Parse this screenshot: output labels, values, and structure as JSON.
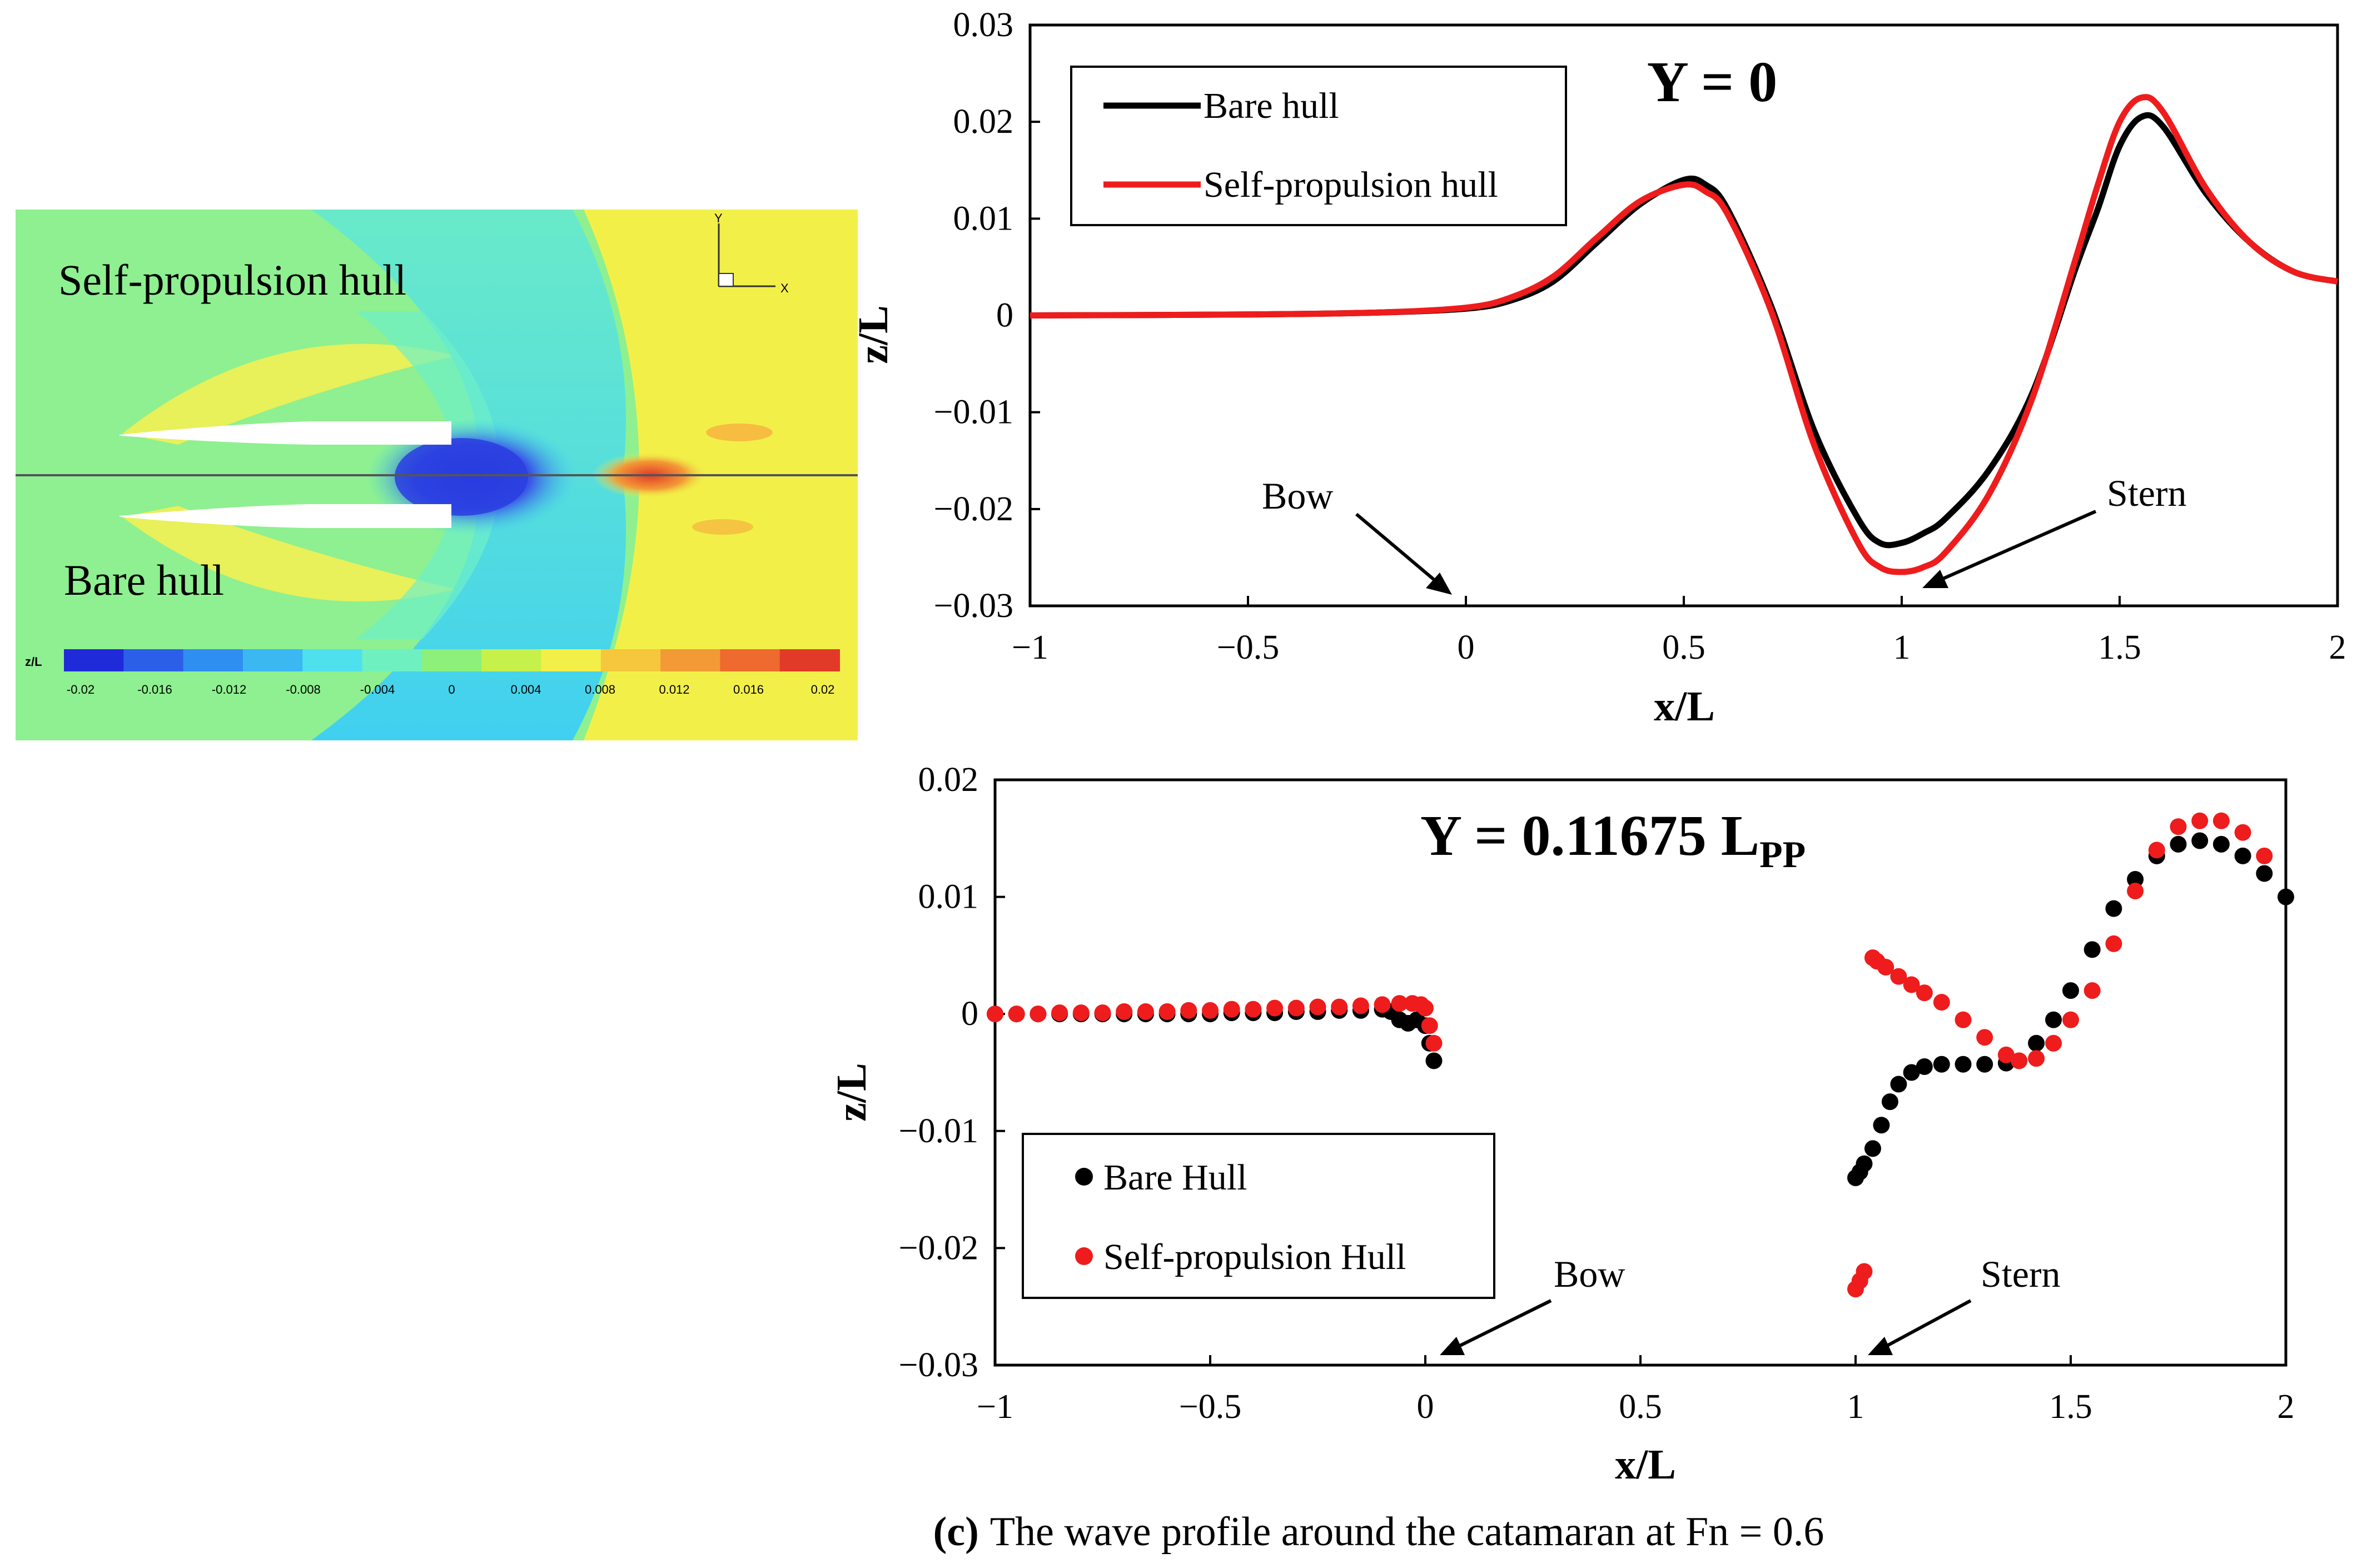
{
  "contour": {
    "top_label": "Self-propulsion hull",
    "bottom_label": "Bare hull",
    "colorbar_label": "z/L",
    "colorbar_ticks": [
      "-0.02",
      "-0.016",
      "-0.012",
      "-0.008",
      "-0.004",
      "0",
      "0.004",
      "0.008",
      "0.012",
      "0.016",
      "0.02"
    ],
    "colorbar_colors": [
      "#1f2bd8",
      "#2c5fe8",
      "#2f8ff0",
      "#3bb8f2",
      "#4fe0ee",
      "#6ff0c0",
      "#8cf07a",
      "#c6f04a",
      "#f2f048",
      "#f6c63c",
      "#f39a36",
      "#ee6a2e",
      "#e23a28"
    ],
    "axis_y": "Y",
    "axis_x": "X"
  },
  "chart_data": [
    {
      "type": "line",
      "title": "Y = 0",
      "xlabel": "x/L",
      "ylabel": "z/L",
      "xlim": [
        -1,
        2
      ],
      "ylim": [
        -0.03,
        0.03
      ],
      "xticks": [
        -1,
        -0.5,
        0,
        0.5,
        1,
        1.5,
        2
      ],
      "xtick_labels": [
        "−1",
        "−0.5",
        "0",
        "0.5",
        "1",
        "1.5",
        "2"
      ],
      "yticks": [
        0.03,
        0.02,
        0.01,
        0,
        -0.01,
        -0.02,
        -0.03
      ],
      "ytick_labels": [
        "0.03",
        "0.02",
        "0.01",
        "0",
        "−0.01",
        "−0.02",
        "−0.03"
      ],
      "legend": [
        "Bare hull",
        "Self-propulsion hull"
      ],
      "series": [
        {
          "name": "Bare hull",
          "color": "#000000",
          "x": [
            -1,
            -0.5,
            -0.2,
            0,
            0.1,
            0.2,
            0.3,
            0.4,
            0.5,
            0.55,
            0.6,
            0.7,
            0.8,
            0.9,
            0.95,
            1.0,
            1.05,
            1.1,
            1.2,
            1.3,
            1.4,
            1.45,
            1.5,
            1.55,
            1.6,
            1.7,
            1.8,
            1.9,
            2.0
          ],
          "y": [
            0,
            0.0001,
            0.0003,
            0.0007,
            0.0015,
            0.0035,
            0.0075,
            0.0115,
            0.014,
            0.0135,
            0.011,
            0.001,
            -0.012,
            -0.021,
            -0.0235,
            -0.0235,
            -0.0225,
            -0.021,
            -0.016,
            -0.008,
            0.005,
            0.011,
            0.0175,
            0.0205,
            0.0195,
            0.0125,
            0.0075,
            0.0045,
            0.0035
          ]
        },
        {
          "name": "Self-propulsion hull",
          "color": "#ee1c1c",
          "x": [
            -1,
            -0.5,
            -0.2,
            0,
            0.1,
            0.2,
            0.3,
            0.4,
            0.5,
            0.55,
            0.6,
            0.7,
            0.8,
            0.9,
            0.95,
            1.0,
            1.05,
            1.1,
            1.2,
            1.3,
            1.4,
            1.45,
            1.5,
            1.55,
            1.6,
            1.7,
            1.8,
            1.9,
            2.0
          ],
          "y": [
            0,
            0.0001,
            0.0003,
            0.0008,
            0.0018,
            0.004,
            0.008,
            0.0118,
            0.0135,
            0.0128,
            0.0105,
            0.0005,
            -0.0135,
            -0.0235,
            -0.026,
            -0.0265,
            -0.026,
            -0.0245,
            -0.0185,
            -0.0085,
            0.006,
            0.0135,
            0.02,
            0.0225,
            0.021,
            0.013,
            0.0075,
            0.0045,
            0.0035
          ]
        }
      ],
      "annotations": [
        {
          "text": "Bow",
          "x": 0
        },
        {
          "text": "Stern",
          "x": 1.05
        }
      ]
    },
    {
      "type": "scatter",
      "title": "Y = 0.11675 L",
      "title_subscript": "PP",
      "xlabel": "x/L",
      "ylabel": "z/L",
      "xlim": [
        -1,
        2
      ],
      "ylim": [
        -0.03,
        0.02
      ],
      "xticks": [
        -1,
        -0.5,
        0,
        0.5,
        1,
        1.5,
        2
      ],
      "xtick_labels": [
        "−1",
        "−0.5",
        "0",
        "0.5",
        "1",
        "1.5",
        "2"
      ],
      "yticks": [
        0.02,
        0.01,
        0,
        -0.01,
        -0.02,
        -0.03
      ],
      "ytick_labels": [
        "0.02",
        "0.01",
        "0",
        "−0.01",
        "−0.02",
        "−0.03"
      ],
      "legend": [
        "Bare Hull",
        "Self-propulsion Hull"
      ],
      "series": [
        {
          "name": "Bare Hull",
          "color": "#000000",
          "x": [
            -1,
            -0.95,
            -0.9,
            -0.85,
            -0.8,
            -0.75,
            -0.7,
            -0.65,
            -0.6,
            -0.55,
            -0.5,
            -0.45,
            -0.4,
            -0.35,
            -0.3,
            -0.25,
            -0.2,
            -0.15,
            -0.1,
            -0.08,
            -0.06,
            -0.04,
            -0.02,
            0,
            0.01,
            0.02,
            1.0,
            1.01,
            1.02,
            1.04,
            1.06,
            1.08,
            1.1,
            1.13,
            1.16,
            1.2,
            1.25,
            1.3,
            1.35,
            1.38,
            1.42,
            1.46,
            1.5,
            1.55,
            1.6,
            1.65,
            1.7,
            1.75,
            1.8,
            1.85,
            1.9,
            1.95,
            2.0
          ],
          "y": [
            0,
            0,
            0,
            0,
            0,
            0,
            0,
            0,
            0,
            0,
            0,
            0.0001,
            0.0001,
            0.0001,
            0.0002,
            0.0002,
            0.0003,
            0.0003,
            0.0004,
            0.0002,
            -0.0005,
            -0.0008,
            -0.0005,
            -0.001,
            -0.0025,
            -0.004,
            -0.014,
            -0.0135,
            -0.0128,
            -0.0115,
            -0.0095,
            -0.0075,
            -0.006,
            -0.005,
            -0.0045,
            -0.0043,
            -0.0043,
            -0.0043,
            -0.0042,
            -0.004,
            -0.0025,
            -0.0005,
            0.002,
            0.0055,
            0.009,
            0.0115,
            0.0135,
            0.0145,
            0.0148,
            0.0145,
            0.0135,
            0.012,
            0.01
          ]
        },
        {
          "name": "Self-propulsion Hull",
          "color": "#ee1c1c",
          "x": [
            -1,
            -0.95,
            -0.9,
            -0.85,
            -0.8,
            -0.75,
            -0.7,
            -0.65,
            -0.6,
            -0.55,
            -0.5,
            -0.45,
            -0.4,
            -0.35,
            -0.3,
            -0.25,
            -0.2,
            -0.15,
            -0.1,
            -0.06,
            -0.03,
            -0.01,
            0,
            0.01,
            0.02,
            1.0,
            1.01,
            1.02,
            1.04,
            1.05,
            1.07,
            1.1,
            1.13,
            1.16,
            1.2,
            1.25,
            1.3,
            1.35,
            1.38,
            1.42,
            1.46,
            1.5,
            1.55,
            1.6,
            1.65,
            1.7,
            1.75,
            1.8,
            1.85,
            1.9,
            1.95
          ],
          "y": [
            0,
            0,
            0,
            0.0001,
            0.0001,
            0.0001,
            0.0002,
            0.0002,
            0.0002,
            0.0003,
            0.0003,
            0.0004,
            0.0004,
            0.0005,
            0.0005,
            0.0006,
            0.0006,
            0.0007,
            0.0008,
            0.0009,
            0.0009,
            0.0008,
            0.0005,
            -0.001,
            -0.0025,
            -0.0235,
            -0.0228,
            -0.022,
            0.0048,
            0.0045,
            0.004,
            0.0032,
            0.0025,
            0.0018,
            0.001,
            -0.0005,
            -0.002,
            -0.0035,
            -0.004,
            -0.0038,
            -0.0025,
            -0.0005,
            0.002,
            0.006,
            0.0105,
            0.014,
            0.016,
            0.0165,
            0.0165,
            0.0155,
            0.0135
          ]
        }
      ],
      "annotations": [
        {
          "text": "Bow",
          "x": 0
        },
        {
          "text": "Stern",
          "x": 1.0
        }
      ]
    }
  ],
  "caption": {
    "label": "(c)",
    "text": "The wave profile around the catamaran at Fn = 0.6"
  }
}
